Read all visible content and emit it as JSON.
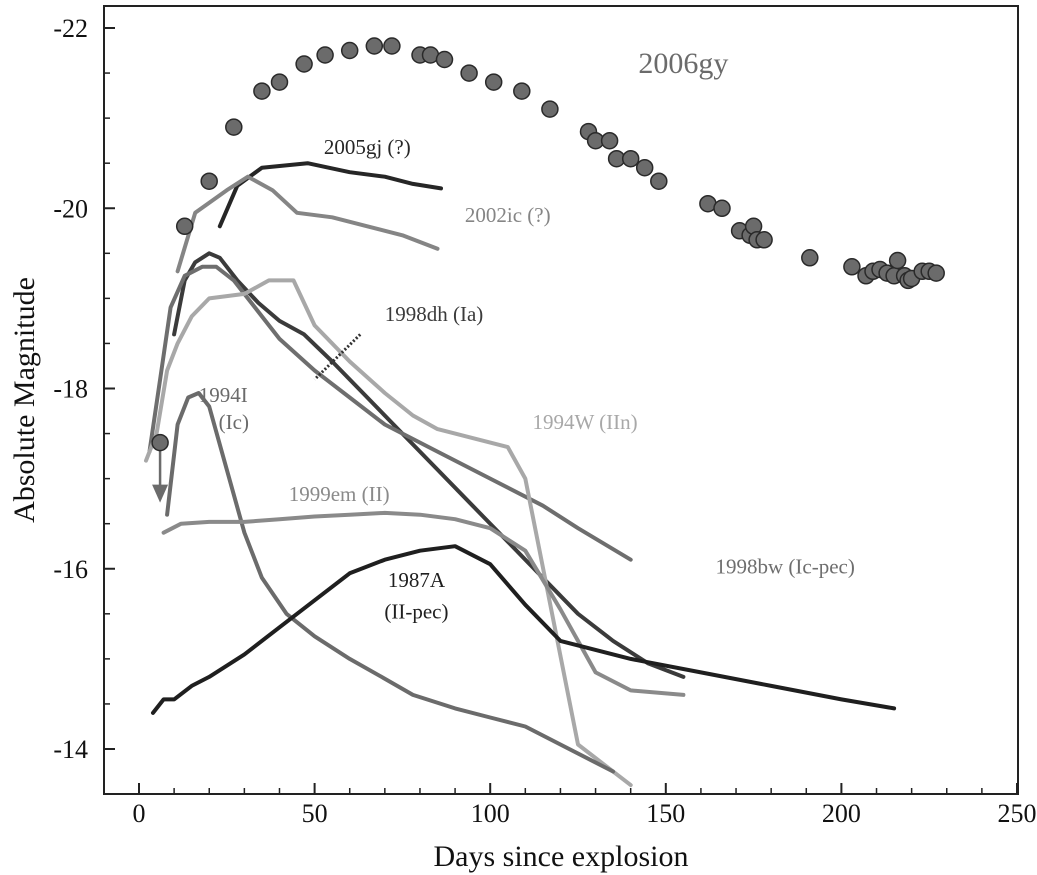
{
  "chart_data": {
    "type": "line",
    "title": "",
    "xlabel": "Days since explosion",
    "ylabel": "Absolute Magnitude",
    "xlim": [
      -10,
      250
    ],
    "ylim": [
      -13.5,
      -22.3
    ],
    "x_ticks": [
      0,
      50,
      100,
      150,
      200,
      250
    ],
    "y_ticks": [
      -22,
      -20,
      -18,
      -16,
      -14
    ],
    "grid": false,
    "scatter": {
      "name": "2006gy",
      "label": "2006gy",
      "color": "#6b6b6b",
      "points": [
        [
          6,
          -17.4
        ],
        [
          13,
          -19.8
        ],
        [
          20,
          -20.3
        ],
        [
          27,
          -20.9
        ],
        [
          35,
          -21.3
        ],
        [
          40,
          -21.4
        ],
        [
          47,
          -21.6
        ],
        [
          53,
          -21.7
        ],
        [
          60,
          -21.75
        ],
        [
          67,
          -21.8
        ],
        [
          72,
          -21.8
        ],
        [
          80,
          -21.7
        ],
        [
          83,
          -21.7
        ],
        [
          87,
          -21.65
        ],
        [
          94,
          -21.5
        ],
        [
          101,
          -21.4
        ],
        [
          109,
          -21.3
        ],
        [
          117,
          -21.1
        ],
        [
          128,
          -20.85
        ],
        [
          130,
          -20.75
        ],
        [
          134,
          -20.75
        ],
        [
          136,
          -20.55
        ],
        [
          140,
          -20.55
        ],
        [
          144,
          -20.45
        ],
        [
          148,
          -20.3
        ],
        [
          162,
          -20.05
        ],
        [
          166,
          -20.0
        ],
        [
          171,
          -19.75
        ],
        [
          174,
          -19.7
        ],
        [
          175,
          -19.8
        ],
        [
          176,
          -19.65
        ],
        [
          178,
          -19.65
        ],
        [
          191,
          -19.45
        ],
        [
          203,
          -19.35
        ],
        [
          207,
          -19.25
        ],
        [
          209,
          -19.3
        ],
        [
          211,
          -19.32
        ],
        [
          213,
          -19.28
        ],
        [
          215,
          -19.25
        ],
        [
          216,
          -19.42
        ],
        [
          218,
          -19.25
        ],
        [
          219,
          -19.2
        ],
        [
          220,
          -19.22
        ],
        [
          223,
          -19.3
        ],
        [
          225,
          -19.3
        ],
        [
          227,
          -19.28
        ]
      ],
      "upper_limit": {
        "x": 6,
        "from": -17.4,
        "to": -16.8
      }
    },
    "series": [
      {
        "name": "2005gj (?)",
        "label": "2005gj (?)",
        "color": "#262626",
        "x": [
          23,
          28,
          35,
          48,
          60,
          70,
          78,
          86
        ],
        "y": [
          -19.8,
          -20.25,
          -20.45,
          -20.5,
          -20.4,
          -20.35,
          -20.27,
          -20.22
        ]
      },
      {
        "name": "2002ic (?)",
        "label": "2002ic (?)",
        "color": "#858585",
        "x": [
          11,
          16,
          25,
          31,
          38,
          45,
          55,
          65,
          75,
          85
        ],
        "y": [
          -19.3,
          -19.95,
          -20.2,
          -20.35,
          -20.2,
          -19.95,
          -19.9,
          -19.8,
          -19.7,
          -19.55
        ]
      },
      {
        "name": "1998dh (Ia)",
        "label": "1998dh (Ia)",
        "color": "#3b3b3b",
        "x": [
          10,
          13,
          16,
          20,
          23,
          28,
          34,
          40,
          47,
          55,
          65,
          75,
          85,
          95,
          105,
          115,
          125,
          135,
          145,
          155
        ],
        "y": [
          -18.6,
          -19.2,
          -19.4,
          -19.5,
          -19.45,
          -19.2,
          -18.95,
          -18.75,
          -18.6,
          -18.3,
          -17.9,
          -17.5,
          -17.1,
          -16.7,
          -16.3,
          -15.9,
          -15.5,
          -15.2,
          -14.95,
          -14.8
        ]
      },
      {
        "name": "1998bw (Ic-pec)",
        "label": "1998bw (Ic-pec)",
        "color": "#6e6e6e",
        "x": [
          3,
          6,
          9,
          13,
          18,
          22,
          27,
          33,
          40,
          50,
          60,
          70,
          85,
          100,
          115,
          125,
          140
        ],
        "y": [
          -17.3,
          -18.1,
          -18.9,
          -19.25,
          -19.35,
          -19.35,
          -19.2,
          -18.9,
          -18.55,
          -18.2,
          -17.9,
          -17.6,
          -17.3,
          -17.0,
          -16.7,
          -16.45,
          -16.1
        ]
      },
      {
        "name": "1994W (IIn)",
        "label": "1994W (IIn)",
        "color": "#a8a8a8",
        "x": [
          2,
          5,
          8,
          11,
          15,
          20,
          30,
          37,
          44,
          50,
          60,
          70,
          78,
          85,
          90,
          95,
          100,
          105,
          110,
          125,
          140
        ],
        "y": [
          -17.2,
          -17.5,
          -18.2,
          -18.5,
          -18.8,
          -19.0,
          -19.05,
          -19.2,
          -19.2,
          -18.7,
          -18.3,
          -17.95,
          -17.7,
          -17.55,
          -17.5,
          -17.45,
          -17.4,
          -17.35,
          -17.0,
          -14.05,
          -13.6
        ]
      },
      {
        "name": "1994I (Ic)",
        "label": "1994I (Ic)",
        "color": "#6b6b6b",
        "x": [
          8,
          11,
          14,
          17,
          20,
          25,
          30,
          35,
          42,
          50,
          60,
          70,
          78,
          90,
          100,
          110,
          120,
          135
        ],
        "y": [
          -16.6,
          -17.6,
          -17.9,
          -17.95,
          -17.8,
          -17.1,
          -16.4,
          -15.9,
          -15.5,
          -15.25,
          -15.0,
          -14.78,
          -14.6,
          -14.45,
          -14.35,
          -14.25,
          -14.05,
          -13.75
        ]
      },
      {
        "name": "1999em (II)",
        "label": "1999em (II)",
        "color": "#8a8a8a",
        "x": [
          7,
          12,
          20,
          30,
          40,
          50,
          60,
          70,
          80,
          90,
          100,
          110,
          120,
          125,
          130,
          140,
          155
        ],
        "y": [
          -16.4,
          -16.5,
          -16.52,
          -16.52,
          -16.55,
          -16.58,
          -16.6,
          -16.62,
          -16.6,
          -16.55,
          -16.45,
          -16.2,
          -15.55,
          -15.2,
          -14.85,
          -14.65,
          -14.6
        ]
      },
      {
        "name": "1987A (II-pec)",
        "label": "1987A (II-pec)",
        "color": "#1f1f1f",
        "x": [
          4,
          7,
          10,
          15,
          20,
          30,
          40,
          50,
          60,
          70,
          80,
          90,
          100,
          110,
          120,
          140,
          160,
          180,
          200,
          215
        ],
        "y": [
          -14.4,
          -14.55,
          -14.55,
          -14.7,
          -14.8,
          -15.05,
          -15.35,
          -15.65,
          -15.95,
          -16.1,
          -16.2,
          -16.25,
          -16.05,
          -15.6,
          -15.2,
          -15.0,
          -14.85,
          -14.7,
          -14.55,
          -14.45
        ]
      }
    ],
    "annotations": [
      {
        "for": "2006gy",
        "text": "2006gy",
        "x": 155,
        "y": -21.5
      },
      {
        "for": "2005gj (?)",
        "text": "2005gj (?)",
        "x": 65,
        "y": -20.6
      },
      {
        "for": "2002ic (?)",
        "text": "2002ic (?)",
        "x": 105,
        "y": -19.85
      },
      {
        "for": "1998dh (Ia)",
        "text": "1998dh (Ia)",
        "x": 84,
        "y": -18.75
      },
      {
        "for": "1994I (Ic)",
        "text": "1994I",
        "x": 24,
        "y": -17.85
      },
      {
        "for": "1994I (Ic)",
        "text": "(Ic)",
        "x": 27,
        "y": -17.55
      },
      {
        "for": "1994W (IIn)",
        "text": "1994W (IIn)",
        "x": 127,
        "y": -17.55
      },
      {
        "for": "1999em (II)",
        "text": "1999em (II)",
        "x": 57,
        "y": -16.75
      },
      {
        "for": "1998bw (Ic-pec)",
        "text": "1998bw (Ic-pec)",
        "x": 184,
        "y": -15.95
      },
      {
        "for": "1987A (II-pec)",
        "text": "1987A",
        "x": 79,
        "y": -15.8
      },
      {
        "for": "1987A (II-pec)",
        "text": "(II-pec)",
        "x": 79,
        "y": -15.45
      }
    ],
    "leader": {
      "for": "1998dh (Ia)",
      "from": [
        63,
        -18.6
      ],
      "to": [
        50,
        -18.1
      ]
    }
  }
}
